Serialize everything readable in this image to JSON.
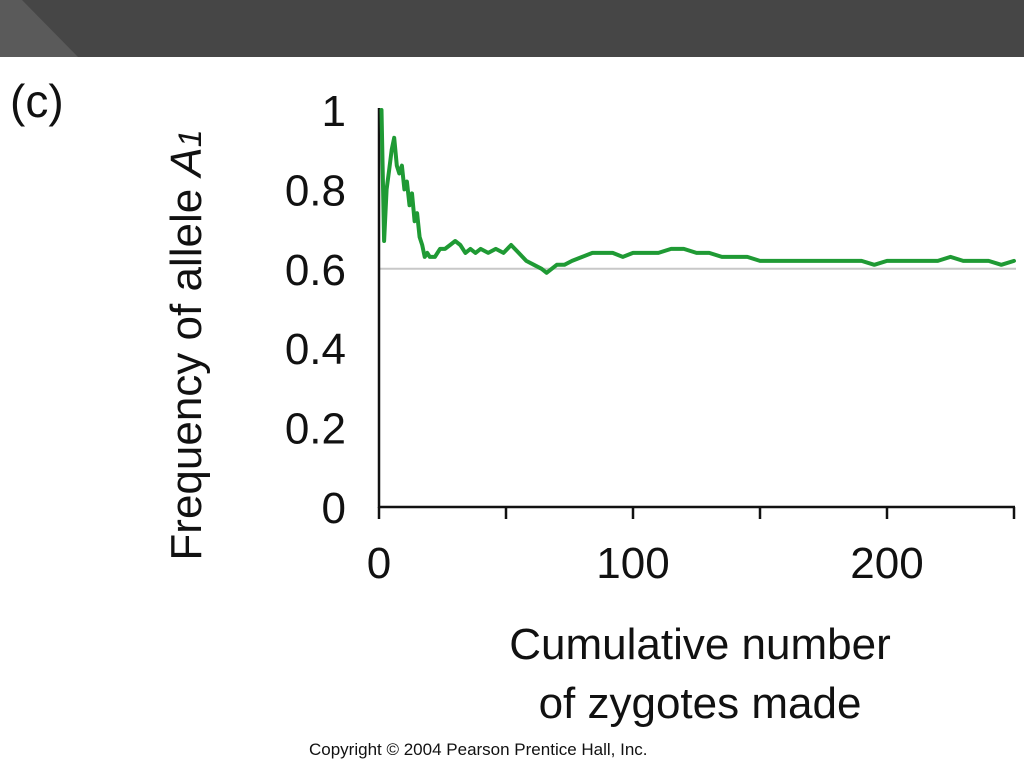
{
  "header": {
    "background": "#464646"
  },
  "panel_label": "(c)",
  "copyright": "Copyright © 2004 Pearson Prentice Hall, Inc.",
  "chart_data": {
    "type": "line",
    "title": "",
    "xlabel_line1": "Cumulative number",
    "xlabel_line2": "of zygotes made",
    "ylabel_main": "Frequency of allele ",
    "ylabel_italic": "A",
    "ylabel_sub": "1",
    "xlim": [
      0,
      250
    ],
    "ylim": [
      0,
      1
    ],
    "x_ticks": [
      0,
      50,
      100,
      150,
      200,
      250
    ],
    "x_tick_labels": [
      "0",
      "",
      "100",
      "",
      "200",
      ""
    ],
    "y_ticks": [
      0,
      0.2,
      0.4,
      0.6,
      0.8,
      1
    ],
    "y_tick_labels": [
      "0",
      "0.2",
      "0.4",
      "0.6",
      "0.8",
      "1"
    ],
    "reference_line": {
      "y": 0.6,
      "color": "#c8c8c8"
    },
    "grid": false,
    "series": [
      {
        "color": "#1f9a34",
        "x": [
          1,
          2,
          3,
          4,
          5,
          6,
          7,
          8,
          9,
          10,
          11,
          12,
          13,
          14,
          15,
          16,
          17,
          18,
          19,
          20,
          22,
          24,
          26,
          28,
          30,
          32,
          34,
          36,
          38,
          40,
          43,
          46,
          49,
          52,
          55,
          58,
          61,
          64,
          66,
          68,
          70,
          73,
          76,
          80,
          84,
          88,
          92,
          96,
          100,
          105,
          110,
          115,
          120,
          125,
          130,
          135,
          140,
          145,
          150,
          155,
          160,
          165,
          170,
          175,
          180,
          185,
          190,
          195,
          200,
          205,
          210,
          215,
          220,
          225,
          230,
          235,
          240,
          245,
          250
        ],
        "values": [
          1.0,
          0.67,
          0.8,
          0.85,
          0.9,
          0.93,
          0.86,
          0.84,
          0.86,
          0.8,
          0.82,
          0.76,
          0.79,
          0.72,
          0.74,
          0.68,
          0.66,
          0.63,
          0.64,
          0.63,
          0.63,
          0.65,
          0.65,
          0.66,
          0.67,
          0.66,
          0.64,
          0.65,
          0.64,
          0.65,
          0.64,
          0.65,
          0.64,
          0.66,
          0.64,
          0.62,
          0.61,
          0.6,
          0.59,
          0.6,
          0.61,
          0.61,
          0.62,
          0.63,
          0.64,
          0.64,
          0.64,
          0.63,
          0.64,
          0.64,
          0.64,
          0.65,
          0.65,
          0.64,
          0.64,
          0.63,
          0.63,
          0.63,
          0.62,
          0.62,
          0.62,
          0.62,
          0.62,
          0.62,
          0.62,
          0.62,
          0.62,
          0.61,
          0.62,
          0.62,
          0.62,
          0.62,
          0.62,
          0.63,
          0.62,
          0.62,
          0.62,
          0.61,
          0.62
        ]
      }
    ]
  }
}
